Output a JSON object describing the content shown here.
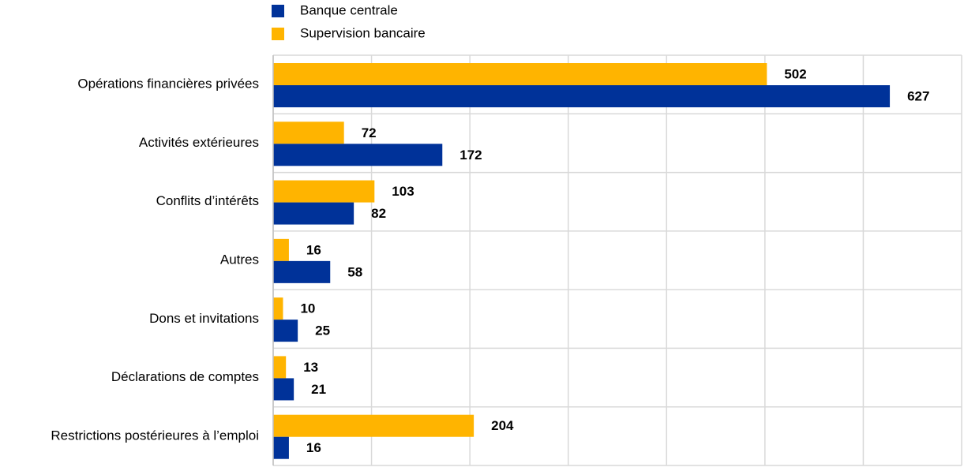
{
  "chart_data": {
    "type": "hbar",
    "categories": [
      "Opérations financières privées",
      "Activités extérieures",
      "Conflits d’intérêts",
      "Autres",
      "Dons et invitations",
      "Déclarations de comptes",
      "Restrictions postérieures à l’emploi"
    ],
    "series": [
      {
        "name": "Banque centrale",
        "color": "#003299",
        "values": [
          627,
          172,
          82,
          58,
          25,
          21,
          16
        ]
      },
      {
        "name": "Supervision bancaire",
        "color": "#ffb400",
        "values": [
          502,
          72,
          103,
          16,
          10,
          13,
          204
        ]
      }
    ],
    "xlim": [
      0,
      700
    ],
    "xticks": [
      0,
      100,
      200,
      300,
      400,
      500,
      600,
      700
    ],
    "grid": true,
    "legend": "top"
  }
}
